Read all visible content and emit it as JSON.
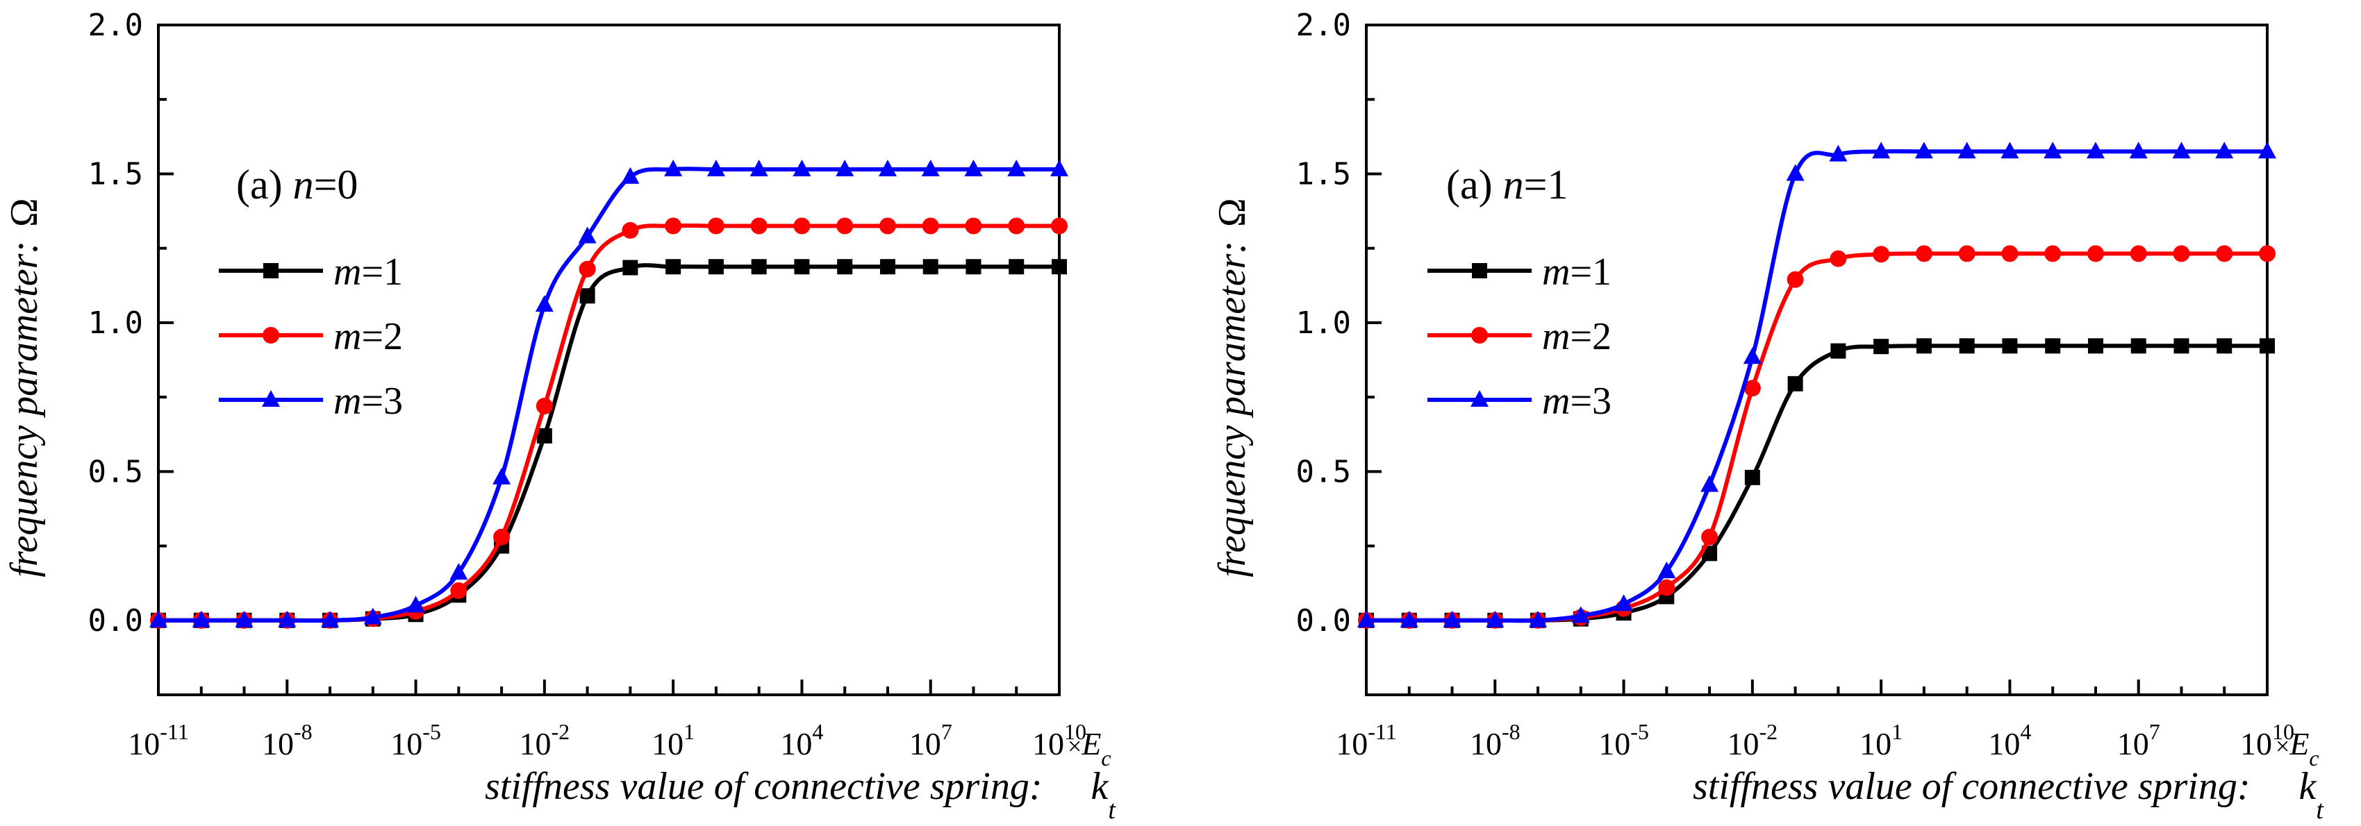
{
  "chart_data": [
    {
      "type": "line",
      "annotation_prefix": "(a) ",
      "annotation_var": "n",
      "annotation_rest": "=0",
      "ylabel": "frequency parameter:",
      "ylabel_symbol": "Ω",
      "xlabel": "stiffness value of connective spring:",
      "xlabel_symbol": "k",
      "xlabel_sub": "t",
      "xunit_prefix": "×",
      "xunit_var": "E",
      "xunit_sub": "c",
      "x_scale": "log",
      "xlim": [
        1e-11,
        10000000000.0
      ],
      "ylim": [
        -0.25,
        2.0
      ],
      "x_ticks": [
        {
          "base": "10",
          "exp": "-11"
        },
        {
          "base": "10",
          "exp": "-8"
        },
        {
          "base": "10",
          "exp": "-5"
        },
        {
          "base": "10",
          "exp": "-2"
        },
        {
          "base": "10",
          "exp": "1"
        },
        {
          "base": "10",
          "exp": "4"
        },
        {
          "base": "10",
          "exp": "7"
        },
        {
          "base": "10",
          "exp": "10"
        }
      ],
      "y_ticks": [
        "0.0",
        "0.5",
        "1.0",
        "1.5",
        "2.0"
      ],
      "x": [
        1e-11,
        1e-10,
        1e-09,
        1e-08,
        1e-07,
        1e-06,
        1e-05,
        0.0001,
        0.001,
        0.01,
        0.1,
        1,
        10.0,
        100.0,
        1000.0,
        10000.0,
        100000.0,
        1000000.0,
        10000000.0,
        100000000.0,
        1000000000.0,
        10000000000.0
      ],
      "series": [
        {
          "name_var": "m",
          "name_rest": "=1",
          "color": "#000000",
          "marker": "square",
          "values": [
            0,
            0,
            0,
            0,
            0,
            0.005,
            0.02,
            0.085,
            0.25,
            0.62,
            1.09,
            1.185,
            1.188,
            1.188,
            1.188,
            1.188,
            1.188,
            1.188,
            1.188,
            1.188,
            1.188,
            1.188
          ]
        },
        {
          "name_var": "m",
          "name_rest": "=2",
          "color": "#ff0000",
          "marker": "circle",
          "values": [
            0,
            0,
            0,
            0,
            0,
            0.006,
            0.03,
            0.1,
            0.28,
            0.72,
            1.18,
            1.31,
            1.325,
            1.325,
            1.325,
            1.325,
            1.325,
            1.325,
            1.325,
            1.325,
            1.325,
            1.325
          ]
        },
        {
          "name_var": "m",
          "name_rest": "=3",
          "color": "#0000ff",
          "marker": "triangle",
          "values": [
            0,
            0,
            0,
            0,
            0,
            0.01,
            0.05,
            0.16,
            0.48,
            1.06,
            1.29,
            1.49,
            1.515,
            1.515,
            1.515,
            1.515,
            1.515,
            1.515,
            1.515,
            1.515,
            1.515,
            1.515
          ]
        }
      ]
    },
    {
      "type": "line",
      "annotation_prefix": "(a) ",
      "annotation_var": "n",
      "annotation_rest": "=1",
      "ylabel": "frequency parameter:",
      "ylabel_symbol": "Ω",
      "xlabel": "stiffness value of connective spring:",
      "xlabel_symbol": "k",
      "xlabel_sub": "t",
      "xunit_prefix": "×",
      "xunit_var": "E",
      "xunit_sub": "c",
      "x_scale": "log",
      "xlim": [
        1e-11,
        10000000000.0
      ],
      "ylim": [
        -0.25,
        2.0
      ],
      "x_ticks": [
        {
          "base": "10",
          "exp": "-11"
        },
        {
          "base": "10",
          "exp": "-8"
        },
        {
          "base": "10",
          "exp": "-5"
        },
        {
          "base": "10",
          "exp": "-2"
        },
        {
          "base": "10",
          "exp": "1"
        },
        {
          "base": "10",
          "exp": "4"
        },
        {
          "base": "10",
          "exp": "7"
        },
        {
          "base": "10",
          "exp": "10"
        }
      ],
      "y_ticks": [
        "0.0",
        "0.5",
        "1.0",
        "1.5",
        "2.0"
      ],
      "x": [
        1e-11,
        1e-10,
        1e-09,
        1e-08,
        1e-07,
        1e-06,
        1e-05,
        0.0001,
        0.001,
        0.01,
        0.1,
        1,
        10.0,
        100.0,
        1000.0,
        10000.0,
        100000.0,
        1000000.0,
        10000000.0,
        100000000.0,
        1000000000.0,
        10000000000.0
      ],
      "series": [
        {
          "name_var": "m",
          "name_rest": "=1",
          "color": "#000000",
          "marker": "square",
          "values": [
            0,
            0,
            0,
            0,
            0,
            0.005,
            0.025,
            0.08,
            0.225,
            0.48,
            0.795,
            0.905,
            0.92,
            0.922,
            0.922,
            0.922,
            0.922,
            0.922,
            0.922,
            0.922,
            0.922,
            0.922
          ]
        },
        {
          "name_var": "m",
          "name_rest": "=2",
          "color": "#ff0000",
          "marker": "circle",
          "values": [
            0,
            0,
            0,
            0,
            0,
            0.01,
            0.04,
            0.11,
            0.28,
            0.78,
            1.145,
            1.215,
            1.23,
            1.232,
            1.232,
            1.232,
            1.232,
            1.232,
            1.232,
            1.232,
            1.232,
            1.232
          ]
        },
        {
          "name_var": "m",
          "name_rest": "=3",
          "color": "#0000ff",
          "marker": "triangle",
          "values": [
            0,
            0,
            0,
            0,
            0,
            0.015,
            0.055,
            0.165,
            0.455,
            0.885,
            1.5,
            1.565,
            1.575,
            1.575,
            1.575,
            1.575,
            1.575,
            1.575,
            1.575,
            1.575,
            1.575,
            1.575
          ]
        }
      ]
    }
  ]
}
